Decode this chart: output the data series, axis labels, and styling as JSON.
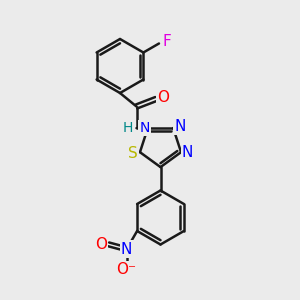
{
  "bg_color": "#ebebeb",
  "bond_color": "#1a1a1a",
  "bond_width": 1.8,
  "inner_shrink": 0.15,
  "atom_colors": {
    "F": "#e000e0",
    "O": "#ff0000",
    "N": "#0000ff",
    "S": "#b8b800",
    "H": "#008888",
    "C": "#1a1a1a"
  },
  "font_size": 10
}
